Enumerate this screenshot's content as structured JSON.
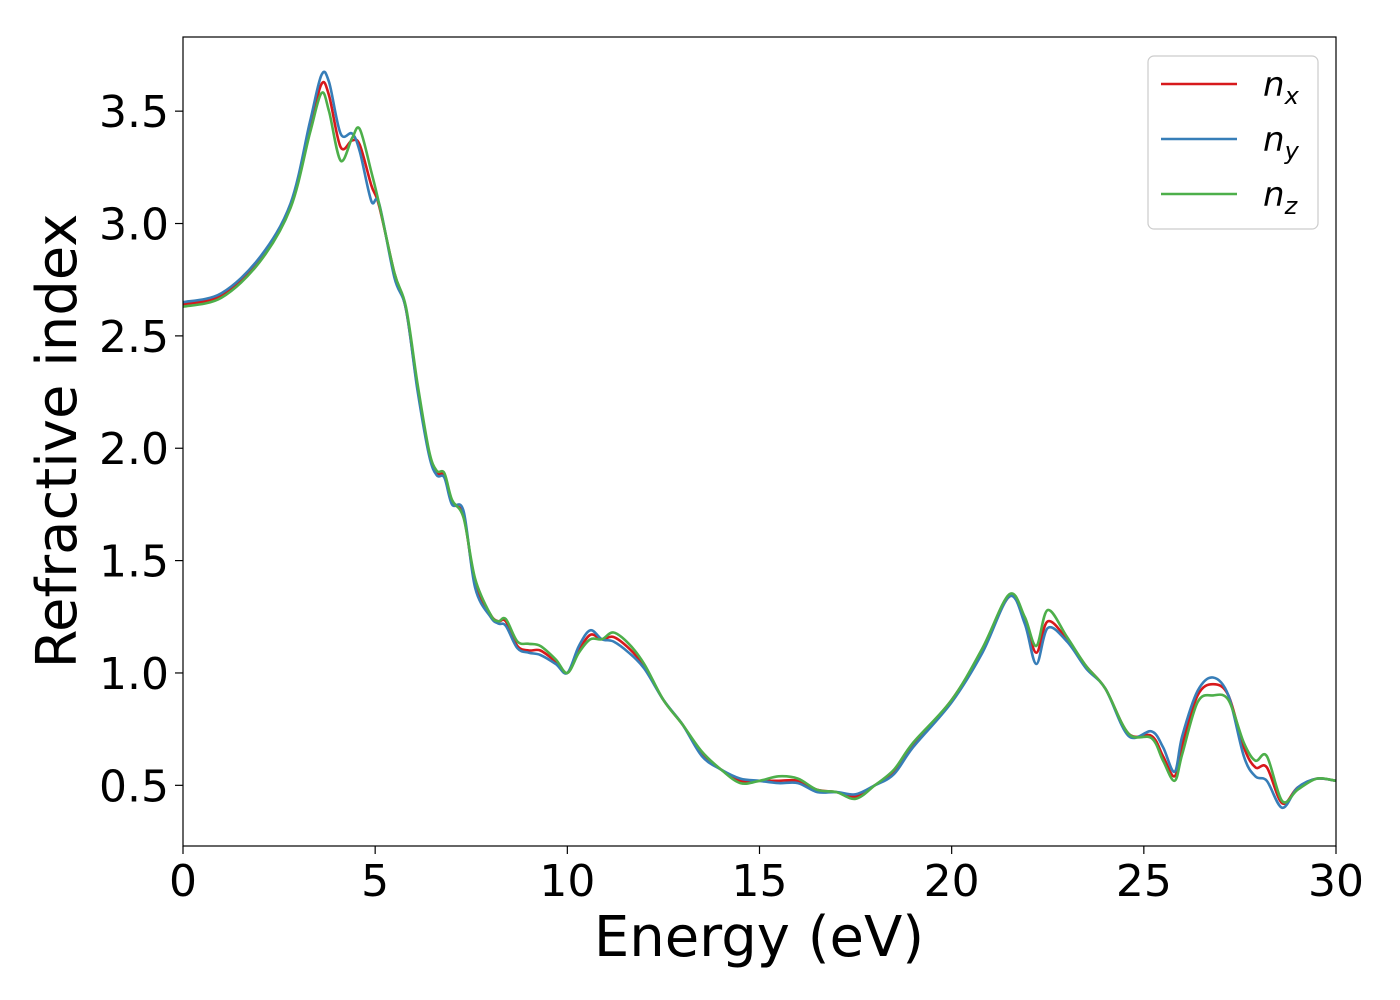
{
  "chart_data": {
    "type": "line",
    "xlabel": "Energy (eV)",
    "ylabel": "Refractive index",
    "xlim": [
      0,
      30
    ],
    "ylim": [
      0.23,
      3.83
    ],
    "xticks": [
      "0",
      "5",
      "10",
      "15",
      "20",
      "25",
      "30"
    ],
    "yticks": [
      "0.5",
      "1.0",
      "1.5",
      "2.0",
      "2.5",
      "3.0",
      "3.5"
    ],
    "grid": false,
    "legend_position": "top-right",
    "colors": {
      "nx": "#d7191c",
      "ny": "#377eb8",
      "nz": "#4daf4a"
    },
    "series": [
      {
        "name": "n",
        "sub": "x",
        "color": "#d7191c",
        "points": [
          [
            0,
            2.64
          ],
          [
            1,
            2.68
          ],
          [
            2,
            2.84
          ],
          [
            2.8,
            3.08
          ],
          [
            3.3,
            3.42
          ],
          [
            3.6,
            3.62
          ],
          [
            3.8,
            3.57
          ],
          [
            4.1,
            3.34
          ],
          [
            4.4,
            3.37
          ],
          [
            4.6,
            3.35
          ],
          [
            4.9,
            3.17
          ],
          [
            5.1,
            3.08
          ],
          [
            5.5,
            2.78
          ],
          [
            5.8,
            2.62
          ],
          [
            6.1,
            2.27
          ],
          [
            6.4,
            1.98
          ],
          [
            6.6,
            1.89
          ],
          [
            6.8,
            1.88
          ],
          [
            7.0,
            1.76
          ],
          [
            7.3,
            1.7
          ],
          [
            7.6,
            1.4
          ],
          [
            8.0,
            1.26
          ],
          [
            8.2,
            1.23
          ],
          [
            8.4,
            1.23
          ],
          [
            8.7,
            1.12
          ],
          [
            9.0,
            1.1
          ],
          [
            9.3,
            1.1
          ],
          [
            9.7,
            1.05
          ],
          [
            10.0,
            1.0
          ],
          [
            10.3,
            1.1
          ],
          [
            10.6,
            1.17
          ],
          [
            10.9,
            1.15
          ],
          [
            11.2,
            1.16
          ],
          [
            11.6,
            1.11
          ],
          [
            12.0,
            1.03
          ],
          [
            12.5,
            0.88
          ],
          [
            13.0,
            0.77
          ],
          [
            13.5,
            0.64
          ],
          [
            14.0,
            0.57
          ],
          [
            14.5,
            0.52
          ],
          [
            15.0,
            0.52
          ],
          [
            15.5,
            0.52
          ],
          [
            16.0,
            0.52
          ],
          [
            16.5,
            0.48
          ],
          [
            17.0,
            0.47
          ],
          [
            17.5,
            0.45
          ],
          [
            18.0,
            0.5
          ],
          [
            18.5,
            0.56
          ],
          [
            19.0,
            0.68
          ],
          [
            20.0,
            0.88
          ],
          [
            20.8,
            1.1
          ],
          [
            21.5,
            1.34
          ],
          [
            21.9,
            1.24
          ],
          [
            22.2,
            1.09
          ],
          [
            22.5,
            1.23
          ],
          [
            23.0,
            1.15
          ],
          [
            23.5,
            1.03
          ],
          [
            24.0,
            0.93
          ],
          [
            24.6,
            0.73
          ],
          [
            25.2,
            0.72
          ],
          [
            25.5,
            0.63
          ],
          [
            25.8,
            0.54
          ],
          [
            26.0,
            0.68
          ],
          [
            26.4,
            0.9
          ],
          [
            26.8,
            0.95
          ],
          [
            27.2,
            0.9
          ],
          [
            27.6,
            0.67
          ],
          [
            27.9,
            0.58
          ],
          [
            28.2,
            0.58
          ],
          [
            28.6,
            0.42
          ],
          [
            29.0,
            0.49
          ],
          [
            29.5,
            0.53
          ],
          [
            30.0,
            0.52
          ]
        ]
      },
      {
        "name": "n",
        "sub": "y",
        "color": "#377eb8",
        "points": [
          [
            0,
            2.65
          ],
          [
            1,
            2.69
          ],
          [
            2,
            2.85
          ],
          [
            2.8,
            3.09
          ],
          [
            3.3,
            3.45
          ],
          [
            3.6,
            3.66
          ],
          [
            3.8,
            3.63
          ],
          [
            4.1,
            3.4
          ],
          [
            4.4,
            3.4
          ],
          [
            4.6,
            3.32
          ],
          [
            4.9,
            3.1
          ],
          [
            5.1,
            3.09
          ],
          [
            5.5,
            2.76
          ],
          [
            5.8,
            2.62
          ],
          [
            6.1,
            2.26
          ],
          [
            6.4,
            1.97
          ],
          [
            6.6,
            1.88
          ],
          [
            6.8,
            1.87
          ],
          [
            7.0,
            1.75
          ],
          [
            7.3,
            1.72
          ],
          [
            7.6,
            1.38
          ],
          [
            8.0,
            1.25
          ],
          [
            8.2,
            1.22
          ],
          [
            8.4,
            1.21
          ],
          [
            8.7,
            1.11
          ],
          [
            9.0,
            1.09
          ],
          [
            9.3,
            1.08
          ],
          [
            9.7,
            1.04
          ],
          [
            10.0,
            1.0
          ],
          [
            10.3,
            1.12
          ],
          [
            10.6,
            1.19
          ],
          [
            10.9,
            1.15
          ],
          [
            11.2,
            1.14
          ],
          [
            11.6,
            1.09
          ],
          [
            12.0,
            1.02
          ],
          [
            12.5,
            0.88
          ],
          [
            13.0,
            0.77
          ],
          [
            13.5,
            0.63
          ],
          [
            14.0,
            0.57
          ],
          [
            14.5,
            0.53
          ],
          [
            15.0,
            0.52
          ],
          [
            15.5,
            0.51
          ],
          [
            16.0,
            0.51
          ],
          [
            16.5,
            0.47
          ],
          [
            17.0,
            0.47
          ],
          [
            17.5,
            0.46
          ],
          [
            18.0,
            0.5
          ],
          [
            18.5,
            0.55
          ],
          [
            19.0,
            0.67
          ],
          [
            20.0,
            0.87
          ],
          [
            20.8,
            1.09
          ],
          [
            21.5,
            1.34
          ],
          [
            21.9,
            1.22
          ],
          [
            22.2,
            1.04
          ],
          [
            22.5,
            1.2
          ],
          [
            23.0,
            1.14
          ],
          [
            23.5,
            1.02
          ],
          [
            24.0,
            0.93
          ],
          [
            24.6,
            0.72
          ],
          [
            25.2,
            0.74
          ],
          [
            25.5,
            0.67
          ],
          [
            25.8,
            0.56
          ],
          [
            26.0,
            0.72
          ],
          [
            26.4,
            0.92
          ],
          [
            26.8,
            0.98
          ],
          [
            27.2,
            0.9
          ],
          [
            27.6,
            0.63
          ],
          [
            27.9,
            0.54
          ],
          [
            28.2,
            0.52
          ],
          [
            28.6,
            0.4
          ],
          [
            29.0,
            0.49
          ],
          [
            29.5,
            0.53
          ],
          [
            30.0,
            0.52
          ]
        ]
      },
      {
        "name": "n",
        "sub": "z",
        "color": "#4daf4a",
        "points": [
          [
            0,
            2.63
          ],
          [
            1,
            2.67
          ],
          [
            2,
            2.83
          ],
          [
            2.8,
            3.07
          ],
          [
            3.3,
            3.4
          ],
          [
            3.6,
            3.58
          ],
          [
            3.8,
            3.5
          ],
          [
            4.1,
            3.28
          ],
          [
            4.4,
            3.38
          ],
          [
            4.6,
            3.42
          ],
          [
            4.9,
            3.23
          ],
          [
            5.1,
            3.09
          ],
          [
            5.5,
            2.78
          ],
          [
            5.8,
            2.63
          ],
          [
            6.1,
            2.29
          ],
          [
            6.4,
            1.99
          ],
          [
            6.6,
            1.9
          ],
          [
            6.8,
            1.89
          ],
          [
            7.0,
            1.77
          ],
          [
            7.3,
            1.69
          ],
          [
            7.6,
            1.42
          ],
          [
            8.0,
            1.26
          ],
          [
            8.2,
            1.23
          ],
          [
            8.4,
            1.24
          ],
          [
            8.7,
            1.14
          ],
          [
            9.0,
            1.13
          ],
          [
            9.3,
            1.12
          ],
          [
            9.7,
            1.06
          ],
          [
            10.0,
            1.0
          ],
          [
            10.3,
            1.09
          ],
          [
            10.6,
            1.15
          ],
          [
            10.9,
            1.15
          ],
          [
            11.2,
            1.18
          ],
          [
            11.6,
            1.13
          ],
          [
            12.0,
            1.04
          ],
          [
            12.5,
            0.88
          ],
          [
            13.0,
            0.77
          ],
          [
            13.5,
            0.65
          ],
          [
            14.0,
            0.57
          ],
          [
            14.5,
            0.51
          ],
          [
            15.0,
            0.52
          ],
          [
            15.5,
            0.54
          ],
          [
            16.0,
            0.53
          ],
          [
            16.5,
            0.48
          ],
          [
            17.0,
            0.47
          ],
          [
            17.5,
            0.44
          ],
          [
            18.0,
            0.5
          ],
          [
            18.5,
            0.57
          ],
          [
            19.0,
            0.69
          ],
          [
            20.0,
            0.88
          ],
          [
            20.8,
            1.11
          ],
          [
            21.5,
            1.35
          ],
          [
            21.9,
            1.25
          ],
          [
            22.2,
            1.12
          ],
          [
            22.5,
            1.28
          ],
          [
            23.0,
            1.16
          ],
          [
            23.5,
            1.03
          ],
          [
            24.0,
            0.93
          ],
          [
            24.6,
            0.73
          ],
          [
            25.2,
            0.71
          ],
          [
            25.5,
            0.61
          ],
          [
            25.8,
            0.52
          ],
          [
            26.0,
            0.64
          ],
          [
            26.4,
            0.87
          ],
          [
            26.8,
            0.9
          ],
          [
            27.2,
            0.88
          ],
          [
            27.6,
            0.69
          ],
          [
            27.9,
            0.61
          ],
          [
            28.2,
            0.63
          ],
          [
            28.6,
            0.43
          ],
          [
            29.0,
            0.48
          ],
          [
            29.5,
            0.53
          ],
          [
            30.0,
            0.52
          ]
        ]
      }
    ]
  }
}
